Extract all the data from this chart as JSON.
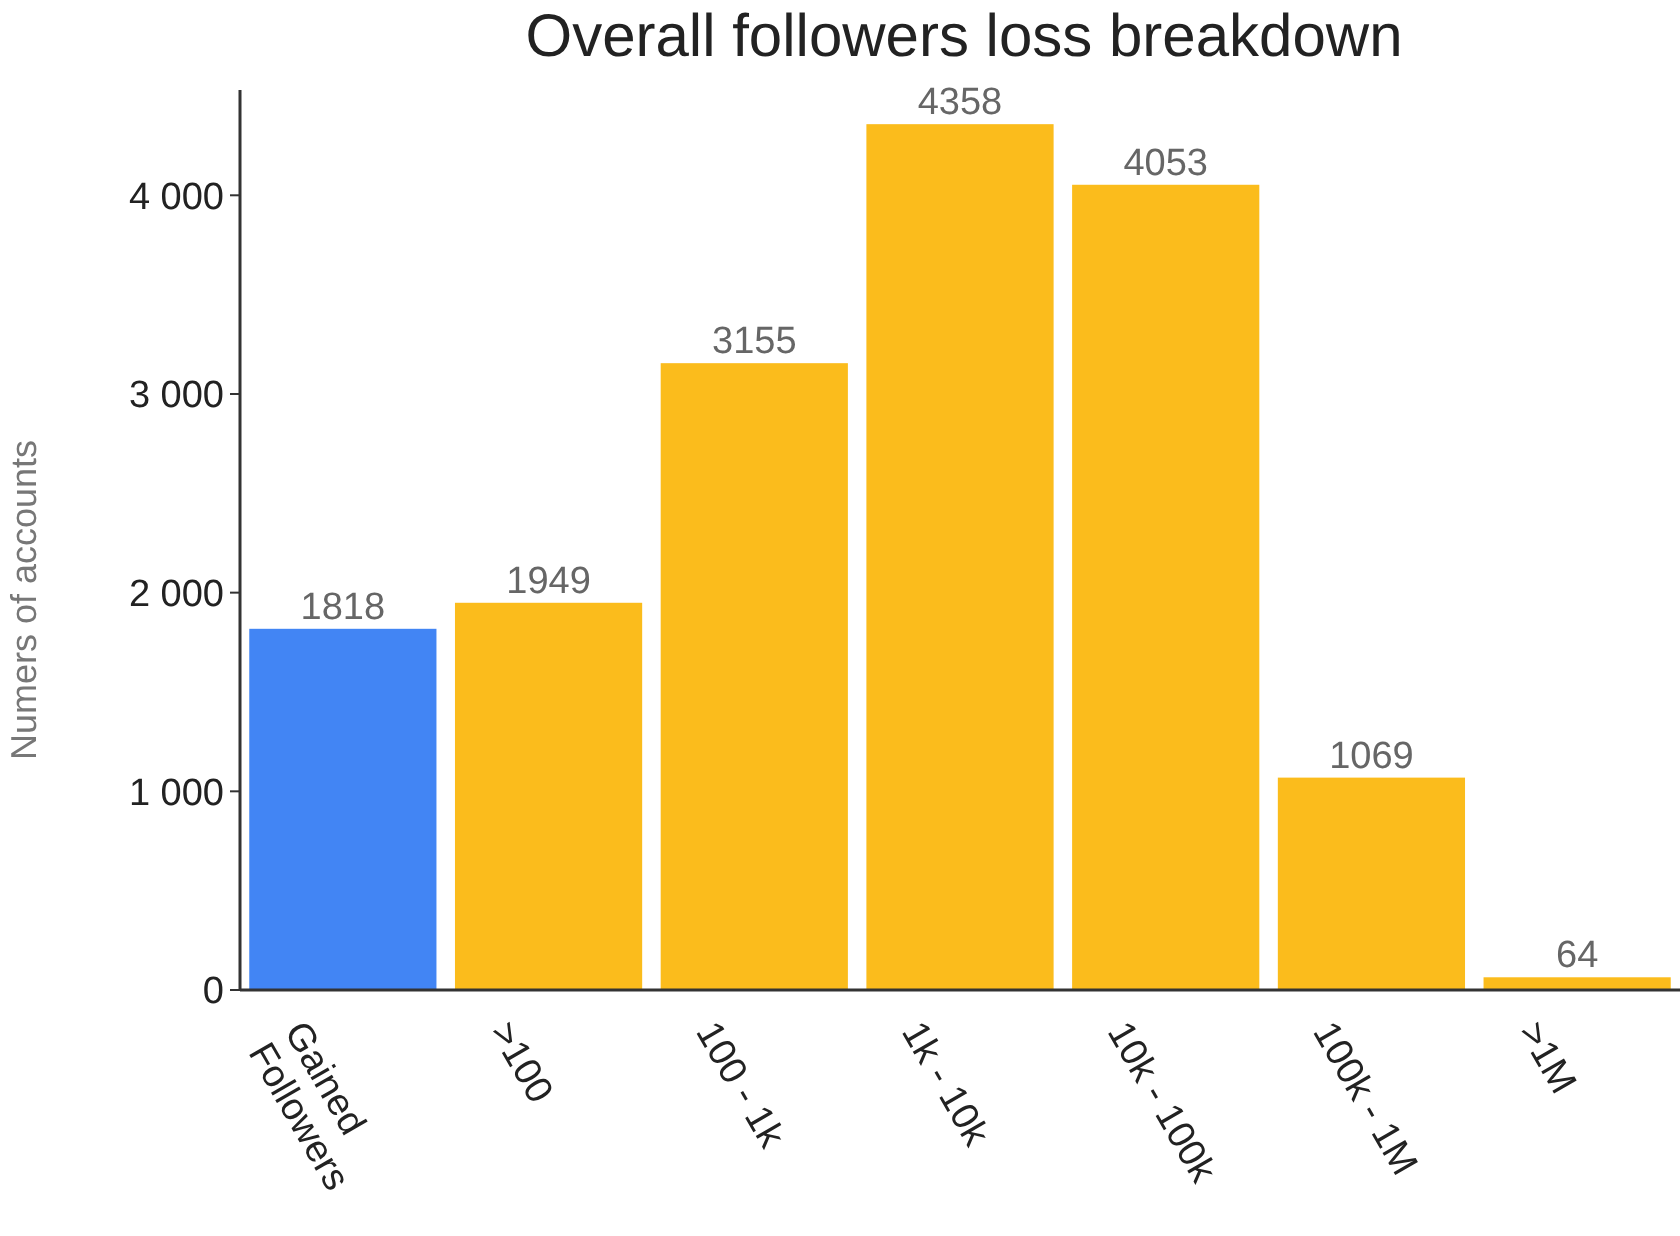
{
  "chart_data": {
    "type": "bar",
    "title": "Overall followers loss breakdown",
    "ylabel": "Numers of accounts",
    "categories": [
      "Gained Followers",
      ">100",
      "100 - 1k",
      "1k - 10k",
      "10k - 100k",
      "100k - 1M",
      ">1M"
    ],
    "values": [
      1818,
      1949,
      3155,
      4358,
      4053,
      1069,
      64
    ],
    "colors": [
      "#4285f4",
      "#fbbc1c",
      "#fbbc1c",
      "#fbbc1c",
      "#fbbc1c",
      "#fbbc1c",
      "#fbbc1c"
    ],
    "ylim": [
      0,
      4530
    ],
    "yticks": [
      0,
      {
        "value": 1000,
        "label": "1 000"
      },
      {
        "value": 2000,
        "label": "2 000"
      },
      {
        "value": 3000,
        "label": "3 000"
      },
      {
        "value": 4000,
        "label": "4 000"
      }
    ],
    "data_labels": true,
    "grid": false
  }
}
